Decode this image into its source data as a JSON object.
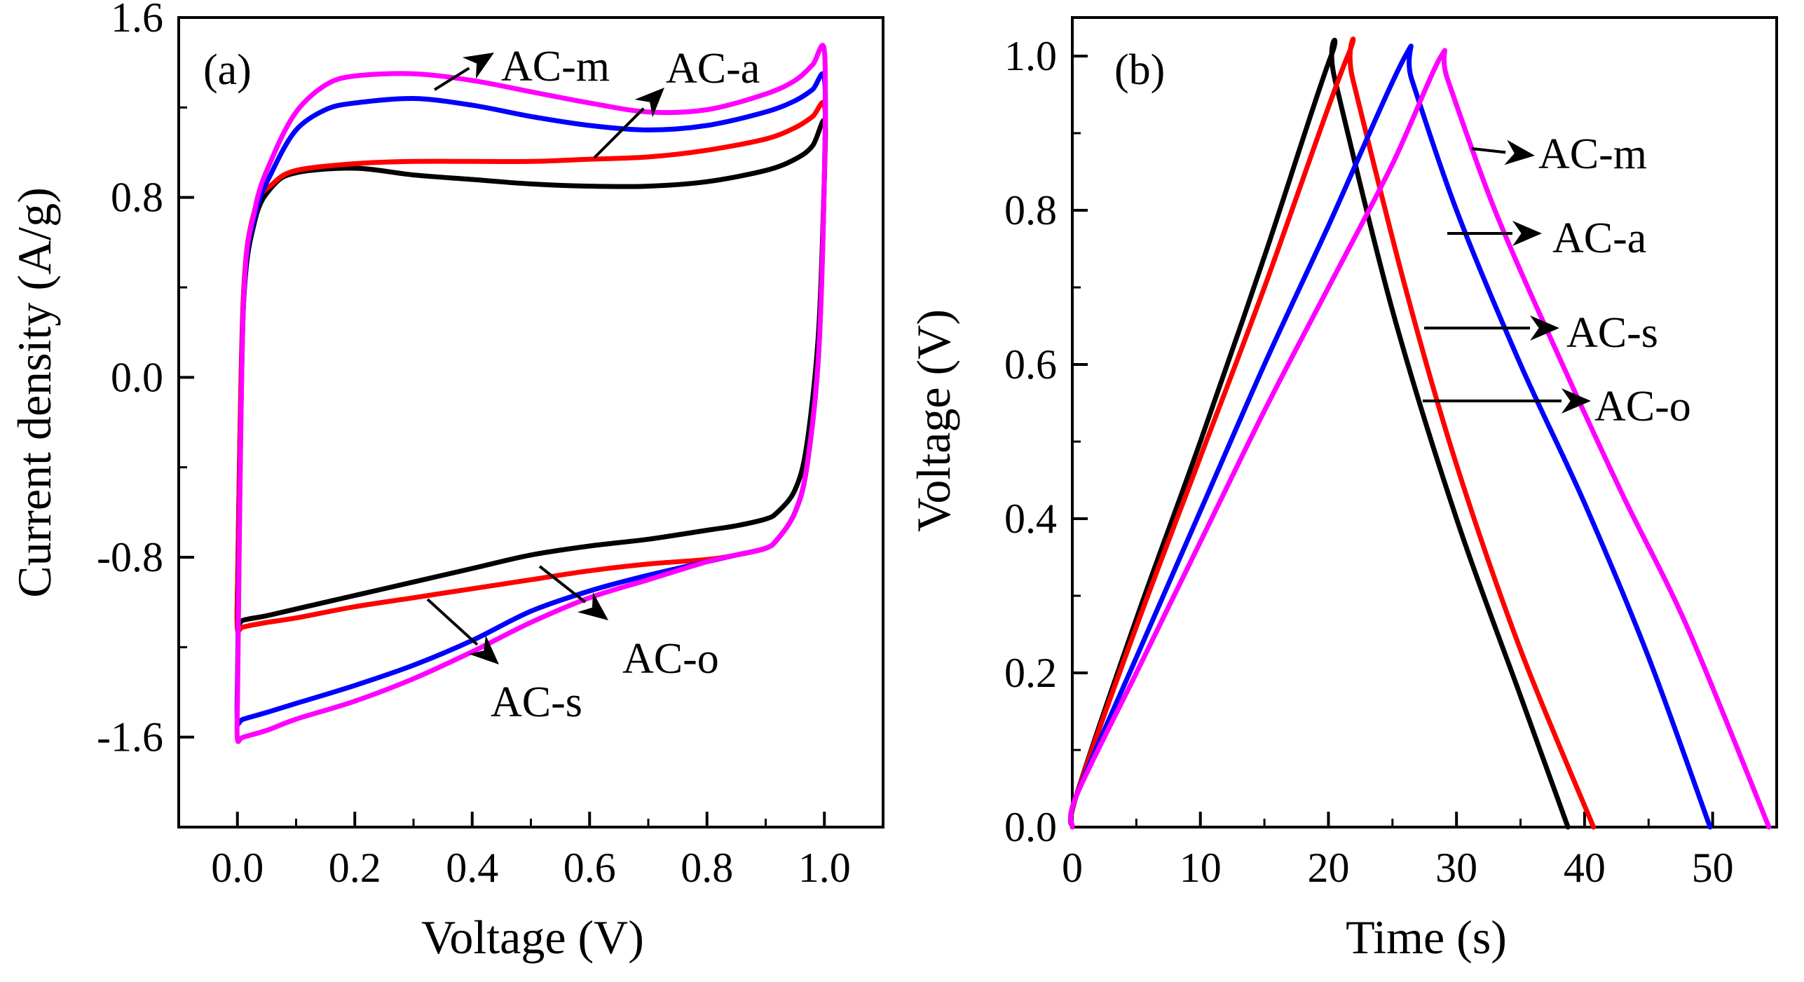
{
  "chart_data": [
    {
      "type": "line",
      "panel_label": "(a)",
      "title": "",
      "xlabel": "Voltage (V)",
      "ylabel": "Current density (A/g)",
      "xlim": [
        -0.1,
        1.1
      ],
      "ylim": [
        -2.0,
        1.6
      ],
      "xticks": [
        0.0,
        0.2,
        0.4,
        0.6,
        0.8,
        1.0
      ],
      "xtick_labels": [
        "0.0",
        "0.2",
        "0.4",
        "0.6",
        "0.8",
        "1.0"
      ],
      "yticks": [
        1.6,
        0.8,
        0.0,
        -0.8,
        -1.6
      ],
      "ytick_labels": [
        "1.6",
        "0.8",
        "0.0",
        "-0.8",
        "-1.6"
      ],
      "grid": false,
      "series": [
        {
          "name": "AC-o",
          "color": "#000000",
          "x": [
            0.0,
            0.01,
            0.03,
            0.06,
            0.1,
            0.2,
            0.3,
            0.4,
            0.5,
            0.6,
            0.7,
            0.8,
            0.9,
            0.95,
            0.98,
            1.0,
            1.0,
            0.99,
            0.97,
            0.95,
            0.92,
            0.9,
            0.85,
            0.8,
            0.7,
            0.6,
            0.5,
            0.4,
            0.3,
            0.2,
            0.1,
            0.05,
            0.01,
            0.0,
            0.0
          ],
          "y": [
            -0.95,
            0.3,
            0.7,
            0.85,
            0.91,
            0.93,
            0.9,
            0.88,
            0.86,
            0.85,
            0.85,
            0.87,
            0.92,
            0.97,
            1.03,
            1.14,
            0.9,
            0.2,
            -0.3,
            -0.5,
            -0.6,
            -0.63,
            -0.66,
            -0.68,
            -0.72,
            -0.75,
            -0.79,
            -0.85,
            -0.91,
            -0.97,
            -1.03,
            -1.06,
            -1.08,
            -1.1,
            -0.95
          ]
        },
        {
          "name": "AC-a",
          "color": "#ff0000",
          "x": [
            0.0,
            0.01,
            0.03,
            0.06,
            0.1,
            0.2,
            0.3,
            0.4,
            0.5,
            0.6,
            0.7,
            0.8,
            0.9,
            0.95,
            0.98,
            1.0,
            1.0,
            0.99,
            0.97,
            0.95,
            0.92,
            0.9,
            0.85,
            0.8,
            0.7,
            0.6,
            0.5,
            0.4,
            0.3,
            0.2,
            0.1,
            0.05,
            0.01,
            0.0,
            0.0
          ],
          "y": [
            -0.95,
            0.35,
            0.75,
            0.86,
            0.92,
            0.95,
            0.96,
            0.96,
            0.96,
            0.97,
            0.98,
            1.01,
            1.06,
            1.11,
            1.16,
            1.21,
            0.9,
            0.1,
            -0.4,
            -0.6,
            -0.72,
            -0.76,
            -0.79,
            -0.81,
            -0.83,
            -0.86,
            -0.9,
            -0.94,
            -0.98,
            -1.02,
            -1.07,
            -1.09,
            -1.11,
            -1.12,
            -0.95
          ]
        },
        {
          "name": "AC-s",
          "color": "#0000ff",
          "x": [
            0.0,
            0.01,
            0.03,
            0.06,
            0.1,
            0.15,
            0.2,
            0.3,
            0.4,
            0.5,
            0.6,
            0.7,
            0.8,
            0.9,
            0.95,
            0.98,
            1.0,
            1.0,
            0.99,
            0.97,
            0.95,
            0.92,
            0.9,
            0.85,
            0.8,
            0.7,
            0.6,
            0.5,
            0.4,
            0.3,
            0.2,
            0.1,
            0.05,
            0.01,
            0.0,
            0.0
          ],
          "y": [
            -1.35,
            0.3,
            0.72,
            0.92,
            1.1,
            1.19,
            1.22,
            1.24,
            1.21,
            1.16,
            1.12,
            1.1,
            1.12,
            1.18,
            1.23,
            1.28,
            1.33,
            0.9,
            0.1,
            -0.4,
            -0.6,
            -0.72,
            -0.76,
            -0.79,
            -0.82,
            -0.88,
            -0.95,
            -1.04,
            -1.17,
            -1.28,
            -1.37,
            -1.45,
            -1.49,
            -1.52,
            -1.53,
            -1.35
          ]
        },
        {
          "name": "AC-m",
          "color": "#ff00ff",
          "x": [
            0.0,
            0.01,
            0.03,
            0.06,
            0.1,
            0.15,
            0.2,
            0.3,
            0.4,
            0.5,
            0.6,
            0.7,
            0.8,
            0.9,
            0.95,
            0.98,
            1.0,
            1.0,
            0.99,
            0.97,
            0.95,
            0.92,
            0.9,
            0.85,
            0.8,
            0.7,
            0.6,
            0.5,
            0.4,
            0.3,
            0.2,
            0.1,
            0.05,
            0.01,
            0.0,
            0.0
          ],
          "y": [
            -1.45,
            0.3,
            0.75,
            0.98,
            1.18,
            1.3,
            1.34,
            1.35,
            1.32,
            1.27,
            1.22,
            1.18,
            1.19,
            1.26,
            1.32,
            1.39,
            1.45,
            0.9,
            0.1,
            -0.4,
            -0.6,
            -0.72,
            -0.76,
            -0.79,
            -0.82,
            -0.9,
            -0.98,
            -1.09,
            -1.22,
            -1.34,
            -1.44,
            -1.52,
            -1.57,
            -1.6,
            -1.61,
            -1.45
          ]
        }
      ],
      "annotations": [
        {
          "text": "AC-m"
        },
        {
          "text": "AC-a"
        },
        {
          "text": "AC-o"
        },
        {
          "text": "AC-s"
        }
      ]
    },
    {
      "type": "line",
      "panel_label": "(b)",
      "title": "",
      "xlabel": "Time (s)",
      "ylabel": "Voltage (V)",
      "xlim": [
        0,
        55
      ],
      "ylim": [
        0.0,
        1.05
      ],
      "xticks": [
        0,
        10,
        20,
        30,
        40,
        50
      ],
      "xtick_labels": [
        "0",
        "10",
        "20",
        "30",
        "40",
        "50"
      ],
      "yticks": [
        0.0,
        0.2,
        0.4,
        0.6,
        0.8,
        1.0
      ],
      "ytick_labels": [
        "0.0",
        "0.2",
        "0.4",
        "0.6",
        "0.8",
        "1.0"
      ],
      "grid": false,
      "series": [
        {
          "name": "AC-o",
          "color": "#000000",
          "x": [
            0,
            0.3,
            5,
            10,
            15,
            20.2,
            20.5,
            25,
            30,
            35,
            38.7
          ],
          "y": [
            0.0,
            0.04,
            0.27,
            0.5,
            0.74,
            1.0,
            0.97,
            0.67,
            0.4,
            0.17,
            0.0
          ],
          "curve": "concave-down discharge"
        },
        {
          "name": "AC-a",
          "color": "#ff0000",
          "x": [
            0,
            0.3,
            5,
            10,
            15,
            21.5,
            21.9,
            26,
            30,
            35,
            40.7
          ],
          "y": [
            0.0,
            0.04,
            0.26,
            0.48,
            0.7,
            1.0,
            0.97,
            0.7,
            0.47,
            0.23,
            0.0
          ]
        },
        {
          "name": "AC-s",
          "color": "#0000ff",
          "x": [
            0,
            0.3,
            5,
            10,
            15,
            20,
            26.0,
            26.5,
            30,
            35,
            40,
            45,
            49.8
          ],
          "y": [
            0.0,
            0.04,
            0.22,
            0.41,
            0.6,
            0.78,
            1.0,
            0.97,
            0.8,
            0.6,
            0.42,
            0.22,
            0.0
          ]
        },
        {
          "name": "AC-m",
          "color": "#ff00ff",
          "x": [
            0,
            0.3,
            5,
            10,
            15,
            20,
            25,
            28.8,
            29.3,
            33,
            38,
            43,
            48,
            54.4
          ],
          "y": [
            0.0,
            0.04,
            0.2,
            0.37,
            0.54,
            0.7,
            0.86,
            1.0,
            0.97,
            0.8,
            0.61,
            0.43,
            0.26,
            0.0
          ]
        }
      ],
      "annotations": [
        {
          "text": "AC-m"
        },
        {
          "text": "AC-a"
        },
        {
          "text": "AC-s"
        },
        {
          "text": "AC-o"
        }
      ]
    }
  ]
}
